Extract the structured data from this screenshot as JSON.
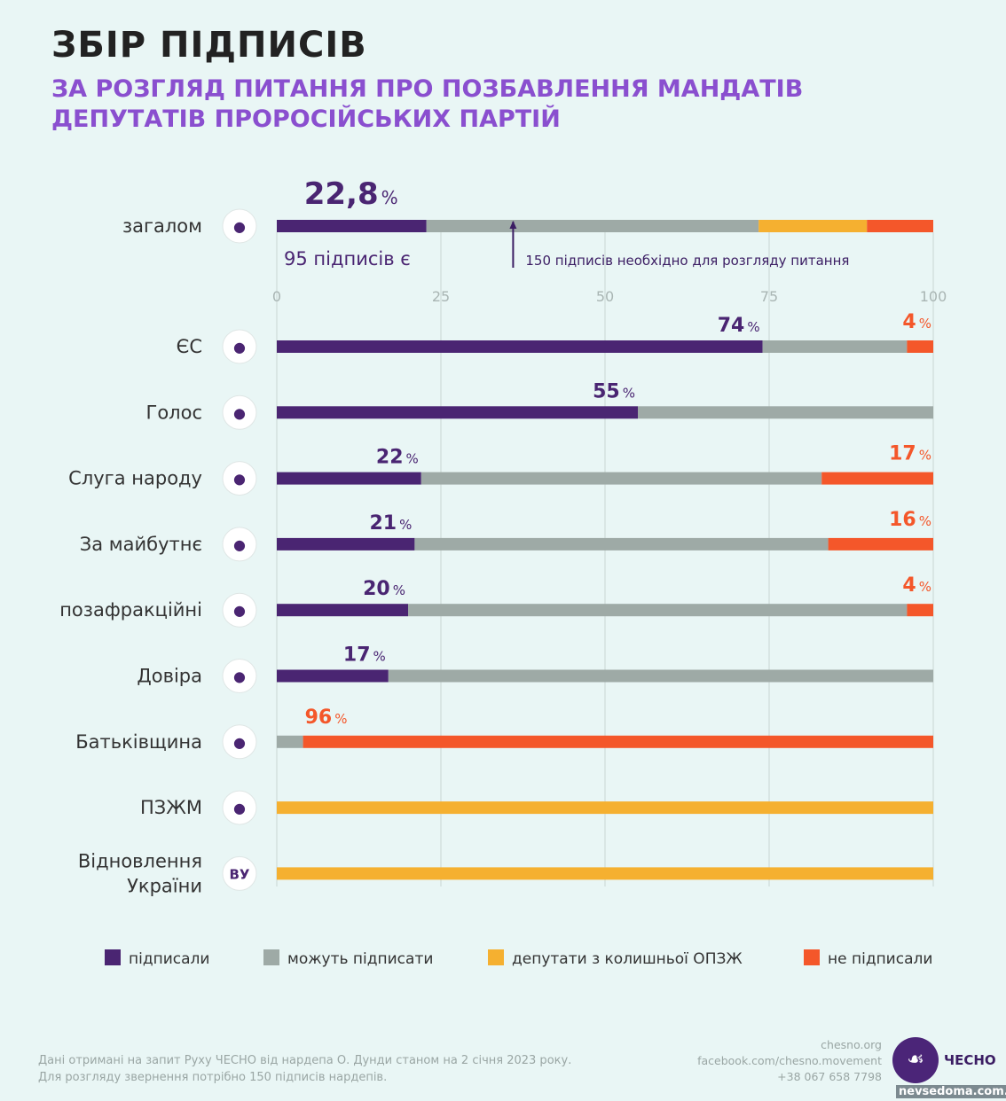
{
  "title": "ЗБІР ПІДПИСІВ",
  "subtitle": "ЗА РОЗГЛЯД ПИТАННЯ ПРО ПОЗБАВЛЕННЯ МАНДАТІВ ДЕПУТАТІВ ПРОРОСІЙСЬКИХ ПАРТІЙ",
  "colors": {
    "signed": "#4a2572",
    "may_sign": "#9eaaa6",
    "ex_opzzh": "#f5b030",
    "not_signed": "#f4572a",
    "bg": "#e9f6f5"
  },
  "chart_data": {
    "type": "bar",
    "orientation": "horizontal-stacked",
    "xlim": [
      0,
      100
    ],
    "xticks": [
      "0",
      "25",
      "50",
      "75",
      "100"
    ],
    "grid": true,
    "legend_placement": "bottom",
    "legend": [
      "підписали",
      "можуть підписати",
      "депутати з колишньої ОПЗЖ",
      "не підписали"
    ],
    "overall": {
      "label": "загалом",
      "icon": "parliament-icon",
      "values": [
        22.8,
        50.6,
        16.5,
        10.1
      ],
      "value_label": "22,8",
      "pct": "%",
      "signed_note": "95 підписів є",
      "threshold": 36,
      "threshold_note": "150 підписів необхідно для розгляду питання"
    },
    "categories": [
      {
        "label": "ЄС",
        "icon": "es-party-icon",
        "values": [
          74,
          22,
          0,
          4
        ],
        "signed_label": "74",
        "not_label": "4"
      },
      {
        "label": "Голос",
        "icon": "holos-party-icon",
        "values": [
          55,
          45,
          0,
          0
        ],
        "signed_label": "55",
        "not_label": ""
      },
      {
        "label": "Слуга народу",
        "icon": "servant-party-icon",
        "values": [
          22,
          61,
          0,
          17
        ],
        "signed_label": "22",
        "not_label": "17"
      },
      {
        "label": "За майбутнє",
        "icon": "future-party-icon",
        "values": [
          21,
          63,
          0,
          16
        ],
        "signed_label": "21",
        "not_label": "16"
      },
      {
        "label": "позафракційні",
        "icon": "person-icon",
        "values": [
          20,
          76,
          0,
          4
        ],
        "signed_label": "20",
        "not_label": "4"
      },
      {
        "label": "Довіра",
        "icon": "dovira-party-icon",
        "values": [
          17,
          83,
          0,
          0
        ],
        "signed_label": "17",
        "not_label": ""
      },
      {
        "label": "Батьківщина",
        "icon": "heart-icon",
        "values": [
          0,
          4,
          0,
          96
        ],
        "signed_label": "",
        "not_label": "96"
      },
      {
        "label": "ПЗЖМ",
        "icon": "pzzhm-party-icon",
        "values": [
          0,
          0,
          100,
          0
        ],
        "signed_label": "",
        "not_label": ""
      },
      {
        "label": "Відновлення України",
        "label_lines": [
          "Відновлення",
          "України"
        ],
        "icon": "vu-party-icon",
        "icon_text": "ВУ",
        "values": [
          0,
          0,
          100,
          0
        ],
        "signed_label": "",
        "not_label": ""
      }
    ]
  },
  "footer": {
    "note_line1": "Дані отримані на запит Руху ЧЕСНО від нардепа О. Дунди станом на 2 січня 2023 року.",
    "note_line2": "Для розгляду звернення потрібно 150 підписів нардепів.",
    "site": "chesno.org",
    "facebook": "facebook.com/chesno.movement",
    "phone": "+38 067 658 7798",
    "logo_text": "ЧЕСНО",
    "watermark": "nevsedoma.com.ua"
  }
}
